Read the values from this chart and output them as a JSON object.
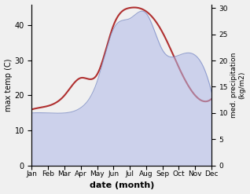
{
  "months": [
    "Jan",
    "Feb",
    "Mar",
    "Apr",
    "May",
    "Jun",
    "Jul",
    "Aug",
    "Sep",
    "Oct",
    "Nov",
    "Dec"
  ],
  "temp_data": [
    16,
    17,
    20,
    25,
    26,
    40,
    45,
    44,
    38,
    28,
    20,
    19
  ],
  "precip_data": [
    10,
    10,
    10,
    11,
    16,
    26,
    28,
    29,
    22,
    21,
    21,
    14
  ],
  "xlabel": "date (month)",
  "ylabel_left": "max temp (C)",
  "ylabel_right": "med. precipitation\n(kg/m2)",
  "temp_color": "#b03030",
  "precip_fill_color": "#b0b8e8",
  "precip_edge_color": "#8090c8",
  "ylim_left": [
    0,
    46
  ],
  "ylim_right": [
    0,
    30.7
  ],
  "yticks_left": [
    0,
    10,
    20,
    30,
    40
  ],
  "yticks_right": [
    0,
    5,
    10,
    15,
    20,
    25,
    30
  ],
  "background_color": "#f0f0f0",
  "figsize": [
    3.18,
    2.47
  ],
  "dpi": 100
}
